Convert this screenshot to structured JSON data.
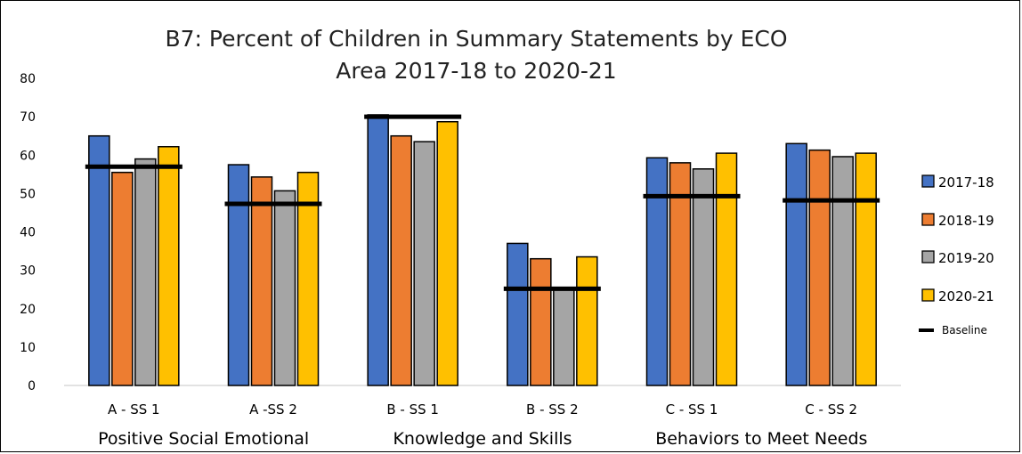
{
  "chart_data": {
    "type": "bar",
    "title": "B7: Percent of Children in Summary Statements by ECO Area 2017-18 to 2020-21",
    "title_lines": [
      "B7: Percent of Children in Summary Statements by ECO",
      "Area 2017-18 to 2020-21"
    ],
    "categories": [
      "A - SS 1",
      "A -SS 2",
      "B - SS 1",
      "B - SS 2",
      "C - SS 1",
      "C - SS 2"
    ],
    "group_labels": [
      "Positive Social Emotional",
      "Knowledge and Skills",
      "Behaviors to Meet Needs"
    ],
    "series": [
      {
        "name": "2017-18",
        "color": "#4472C4",
        "values": [
          65,
          57.5,
          70.5,
          37,
          59.3,
          63
        ]
      },
      {
        "name": "2018-19",
        "color": "#ED7D31",
        "values": [
          55.5,
          54.3,
          65,
          33,
          58,
          61.3
        ]
      },
      {
        "name": "2019-20",
        "color": "#A5A5A5",
        "values": [
          59,
          50.7,
          63.5,
          25.5,
          56.4,
          59.6
        ]
      },
      {
        "name": "2020-21",
        "color": "#FFC000",
        "values": [
          62.2,
          55.5,
          68.7,
          33.5,
          60.5,
          60.5
        ]
      }
    ],
    "baseline": {
      "name": "Baseline",
      "values": [
        57,
        47.3,
        70,
        25.2,
        49.3,
        48.2
      ]
    },
    "ylim": [
      0,
      80
    ],
    "yticks": [
      0,
      10,
      20,
      30,
      40,
      50,
      60,
      70,
      80
    ],
    "grid": false,
    "legend_position": "right"
  }
}
